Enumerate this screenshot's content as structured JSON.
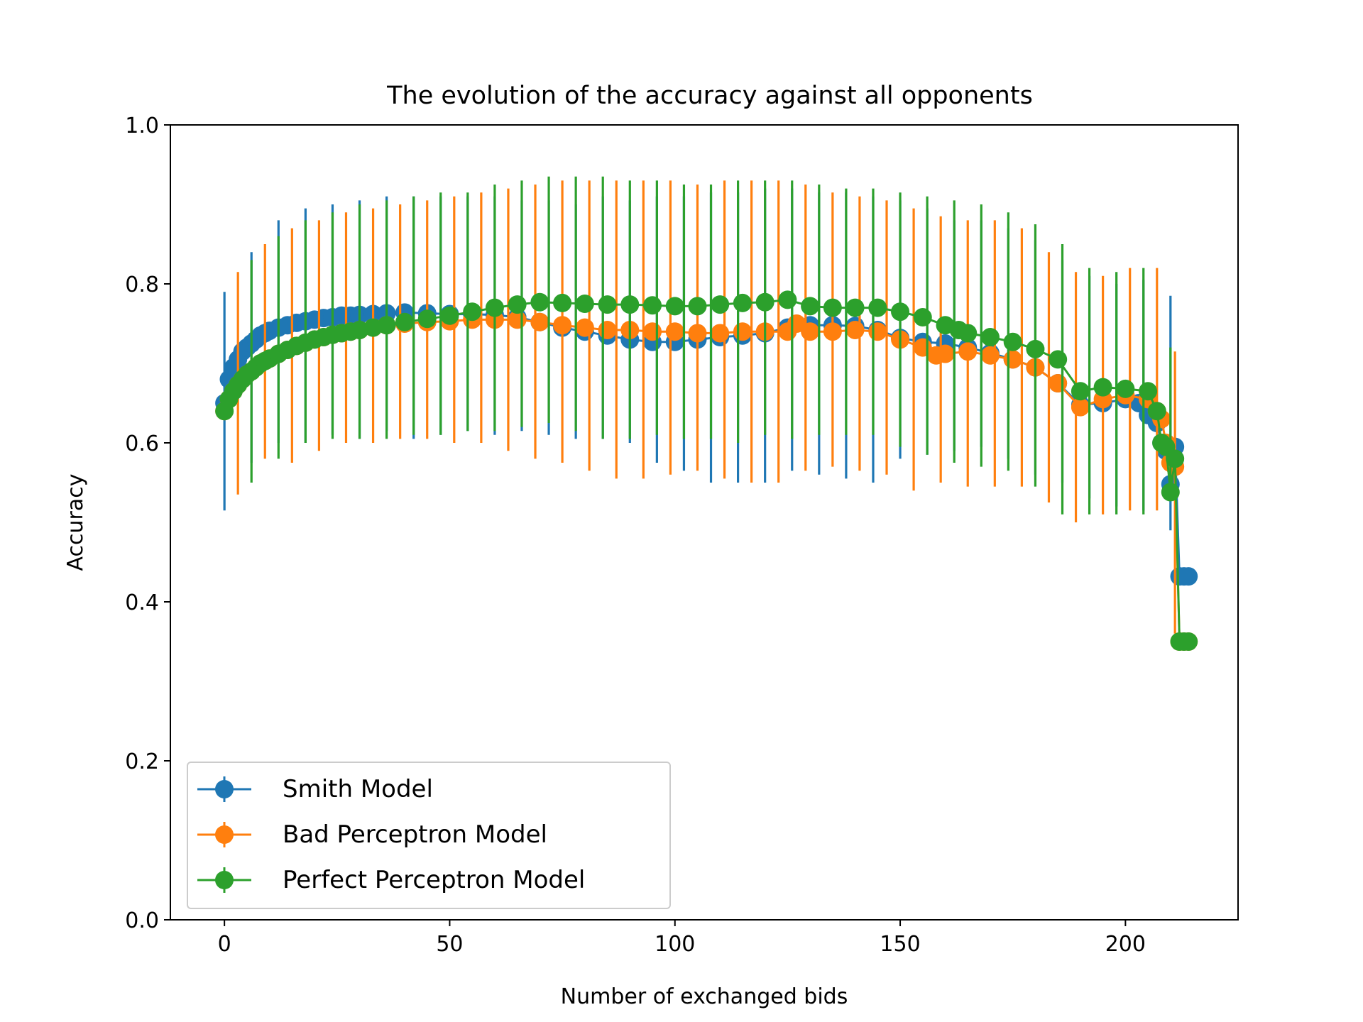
{
  "chart_data": {
    "type": "line",
    "title": "The evolution of the accuracy against all opponents",
    "xlabel": "Number of exchanged bids",
    "ylabel": "Accuracy",
    "xlim": [
      -12,
      225
    ],
    "ylim": [
      0.0,
      1.0
    ],
    "xticks": [
      {
        "value": 0,
        "label": "0"
      },
      {
        "value": 50,
        "label": "50"
      },
      {
        "value": 100,
        "label": "100"
      },
      {
        "value": 150,
        "label": "150"
      },
      {
        "value": 200,
        "label": "200"
      }
    ],
    "yticks": [
      {
        "value": 0.0,
        "label": "0.0"
      },
      {
        "value": 0.2,
        "label": "0.2"
      },
      {
        "value": 0.4,
        "label": "0.4"
      },
      {
        "value": 0.6,
        "label": "0.6"
      },
      {
        "value": 0.8,
        "label": "0.8"
      },
      {
        "value": 1.0,
        "label": "1.0"
      }
    ],
    "grid": false,
    "legend_position": "lower-left",
    "series": [
      {
        "name": "Smith Model",
        "color": "#1f77b4",
        "x": [
          0,
          1,
          2,
          3,
          4,
          5,
          6,
          7,
          8,
          9,
          10,
          12,
          14,
          16,
          18,
          20,
          22,
          24,
          26,
          28,
          30,
          33,
          36,
          40,
          45,
          50,
          55,
          60,
          65,
          70,
          75,
          80,
          85,
          90,
          95,
          100,
          105,
          110,
          115,
          120,
          125,
          130,
          135,
          140,
          145,
          150,
          155,
          160,
          165,
          170,
          175,
          180,
          185,
          190,
          195,
          200,
          203,
          205,
          207,
          208,
          209,
          210,
          211,
          212,
          213,
          214
        ],
        "y": [
          0.65,
          0.68,
          0.695,
          0.705,
          0.715,
          0.72,
          0.725,
          0.73,
          0.735,
          0.738,
          0.741,
          0.745,
          0.748,
          0.751,
          0.753,
          0.755,
          0.757,
          0.758,
          0.76,
          0.76,
          0.761,
          0.762,
          0.763,
          0.764,
          0.763,
          0.762,
          0.762,
          0.761,
          0.758,
          0.752,
          0.745,
          0.74,
          0.735,
          0.73,
          0.727,
          0.727,
          0.73,
          0.733,
          0.735,
          0.738,
          0.745,
          0.748,
          0.748,
          0.747,
          0.742,
          0.732,
          0.727,
          0.725,
          0.72,
          0.713,
          0.705,
          0.695,
          0.675,
          0.648,
          0.65,
          0.655,
          0.65,
          0.635,
          0.625,
          0.6,
          0.59,
          0.548,
          0.595,
          0.432,
          0.432,
          0.432
        ],
        "error_x": [
          0,
          6,
          12,
          18,
          24,
          30,
          36,
          42,
          48,
          54,
          60,
          66,
          72,
          78,
          84,
          90,
          96,
          102,
          108,
          114,
          120,
          126,
          132,
          138,
          144,
          150,
          156,
          162,
          168,
          174,
          180,
          186,
          192,
          198,
          204,
          210
        ],
        "error_lo": [
          0.515,
          0.575,
          0.6,
          0.6,
          0.61,
          0.605,
          0.615,
          0.605,
          0.61,
          0.615,
          0.61,
          0.615,
          0.61,
          0.605,
          0.605,
          0.6,
          0.575,
          0.565,
          0.55,
          0.55,
          0.55,
          0.565,
          0.56,
          0.555,
          0.55,
          0.58,
          0.585,
          0.59,
          0.595,
          0.58,
          0.56,
          0.55,
          0.53,
          0.52,
          0.515,
          0.49
        ],
        "error_hi": [
          0.79,
          0.84,
          0.88,
          0.895,
          0.9,
          0.905,
          0.91,
          0.91,
          0.91,
          0.91,
          0.91,
          0.905,
          0.905,
          0.9,
          0.91,
          0.905,
          0.91,
          0.91,
          0.915,
          0.915,
          0.92,
          0.92,
          0.915,
          0.915,
          0.91,
          0.905,
          0.895,
          0.88,
          0.88,
          0.87,
          0.855,
          0.83,
          0.81,
          0.8,
          0.805,
          0.785
        ]
      },
      {
        "name": "Bad Perceptron Model",
        "color": "#ff7f0e",
        "x": [
          0,
          1,
          2,
          3,
          4,
          5,
          6,
          7,
          8,
          9,
          10,
          12,
          14,
          16,
          18,
          20,
          22,
          24,
          26,
          28,
          30,
          33,
          36,
          40,
          45,
          50,
          55,
          60,
          65,
          70,
          75,
          80,
          85,
          90,
          95,
          100,
          105,
          110,
          115,
          120,
          125,
          127,
          130,
          135,
          140,
          145,
          150,
          155,
          158,
          160,
          165,
          170,
          175,
          180,
          185,
          190,
          195,
          200,
          205,
          207,
          208,
          209,
          210,
          211,
          212,
          213,
          214
        ],
        "y": [
          0.64,
          0.655,
          0.665,
          0.673,
          0.68,
          0.686,
          0.69,
          0.695,
          0.7,
          0.703,
          0.706,
          0.712,
          0.717,
          0.722,
          0.726,
          0.73,
          0.733,
          0.736,
          0.738,
          0.74,
          0.742,
          0.745,
          0.748,
          0.75,
          0.752,
          0.753,
          0.755,
          0.755,
          0.755,
          0.752,
          0.748,
          0.745,
          0.742,
          0.742,
          0.74,
          0.74,
          0.738,
          0.738,
          0.74,
          0.74,
          0.74,
          0.75,
          0.74,
          0.74,
          0.742,
          0.74,
          0.73,
          0.72,
          0.71,
          0.712,
          0.715,
          0.71,
          0.705,
          0.695,
          0.675,
          0.645,
          0.655,
          0.66,
          0.655,
          0.64,
          0.63,
          0.6,
          0.575,
          0.57,
          0.35,
          0.35,
          0.35
        ],
        "error_x": [
          3,
          9,
          15,
          21,
          27,
          33,
          39,
          45,
          51,
          57,
          63,
          69,
          75,
          81,
          87,
          93,
          99,
          105,
          111,
          117,
          123,
          129,
          135,
          141,
          147,
          153,
          159,
          165,
          171,
          177,
          183,
          189,
          195,
          201,
          207,
          211
        ],
        "error_lo": [
          0.535,
          0.58,
          0.575,
          0.59,
          0.6,
          0.6,
          0.605,
          0.605,
          0.6,
          0.6,
          0.59,
          0.58,
          0.575,
          0.565,
          0.555,
          0.555,
          0.56,
          0.565,
          0.555,
          0.55,
          0.55,
          0.565,
          0.57,
          0.565,
          0.56,
          0.54,
          0.55,
          0.545,
          0.545,
          0.545,
          0.525,
          0.5,
          0.51,
          0.515,
          0.515,
          0.36
        ],
        "error_hi": [
          0.815,
          0.85,
          0.87,
          0.88,
          0.89,
          0.895,
          0.9,
          0.905,
          0.91,
          0.915,
          0.92,
          0.925,
          0.93,
          0.93,
          0.93,
          0.93,
          0.93,
          0.925,
          0.93,
          0.93,
          0.93,
          0.925,
          0.915,
          0.91,
          0.905,
          0.895,
          0.885,
          0.88,
          0.88,
          0.87,
          0.84,
          0.815,
          0.81,
          0.82,
          0.82,
          0.715
        ]
      },
      {
        "name": "Perfect Perceptron Model",
        "color": "#2ca02c",
        "x": [
          0,
          1,
          2,
          3,
          4,
          5,
          6,
          7,
          8,
          9,
          10,
          12,
          14,
          16,
          18,
          20,
          22,
          24,
          26,
          28,
          30,
          33,
          36,
          40,
          45,
          50,
          55,
          60,
          65,
          70,
          75,
          80,
          85,
          90,
          95,
          100,
          105,
          110,
          115,
          120,
          125,
          130,
          135,
          140,
          145,
          150,
          155,
          160,
          163,
          165,
          170,
          175,
          180,
          185,
          190,
          195,
          200,
          205,
          207,
          208,
          209,
          210,
          211,
          212,
          213,
          214
        ],
        "y": [
          0.64,
          0.655,
          0.665,
          0.673,
          0.68,
          0.686,
          0.69,
          0.695,
          0.7,
          0.703,
          0.706,
          0.712,
          0.717,
          0.722,
          0.726,
          0.73,
          0.733,
          0.736,
          0.738,
          0.74,
          0.742,
          0.745,
          0.748,
          0.752,
          0.756,
          0.76,
          0.765,
          0.77,
          0.774,
          0.777,
          0.776,
          0.775,
          0.774,
          0.774,
          0.773,
          0.772,
          0.772,
          0.774,
          0.776,
          0.777,
          0.78,
          0.772,
          0.77,
          0.77,
          0.77,
          0.765,
          0.758,
          0.748,
          0.742,
          0.738,
          0.733,
          0.727,
          0.718,
          0.705,
          0.665,
          0.67,
          0.668,
          0.665,
          0.64,
          0.6,
          0.595,
          0.538,
          0.58,
          0.35,
          0.35,
          0.35
        ],
        "error_x": [
          6,
          12,
          18,
          24,
          30,
          36,
          42,
          48,
          54,
          60,
          66,
          72,
          78,
          84,
          90,
          96,
          102,
          108,
          114,
          120,
          126,
          132,
          138,
          144,
          150,
          156,
          162,
          168,
          174,
          180,
          186,
          192,
          198,
          204,
          210
        ],
        "error_lo": [
          0.55,
          0.58,
          0.6,
          0.605,
          0.605,
          0.605,
          0.61,
          0.61,
          0.615,
          0.615,
          0.62,
          0.625,
          0.615,
          0.605,
          0.605,
          0.61,
          0.605,
          0.605,
          0.6,
          0.61,
          0.605,
          0.61,
          0.61,
          0.61,
          0.595,
          0.585,
          0.575,
          0.57,
          0.565,
          0.545,
          0.51,
          0.51,
          0.51,
          0.51,
          0.535
        ],
        "error_hi": [
          0.83,
          0.86,
          0.88,
          0.89,
          0.9,
          0.905,
          0.91,
          0.915,
          0.915,
          0.925,
          0.93,
          0.935,
          0.935,
          0.935,
          0.93,
          0.93,
          0.925,
          0.925,
          0.93,
          0.93,
          0.93,
          0.925,
          0.92,
          0.92,
          0.915,
          0.91,
          0.905,
          0.9,
          0.89,
          0.875,
          0.85,
          0.82,
          0.815,
          0.82,
          0.72
        ]
      }
    ]
  }
}
